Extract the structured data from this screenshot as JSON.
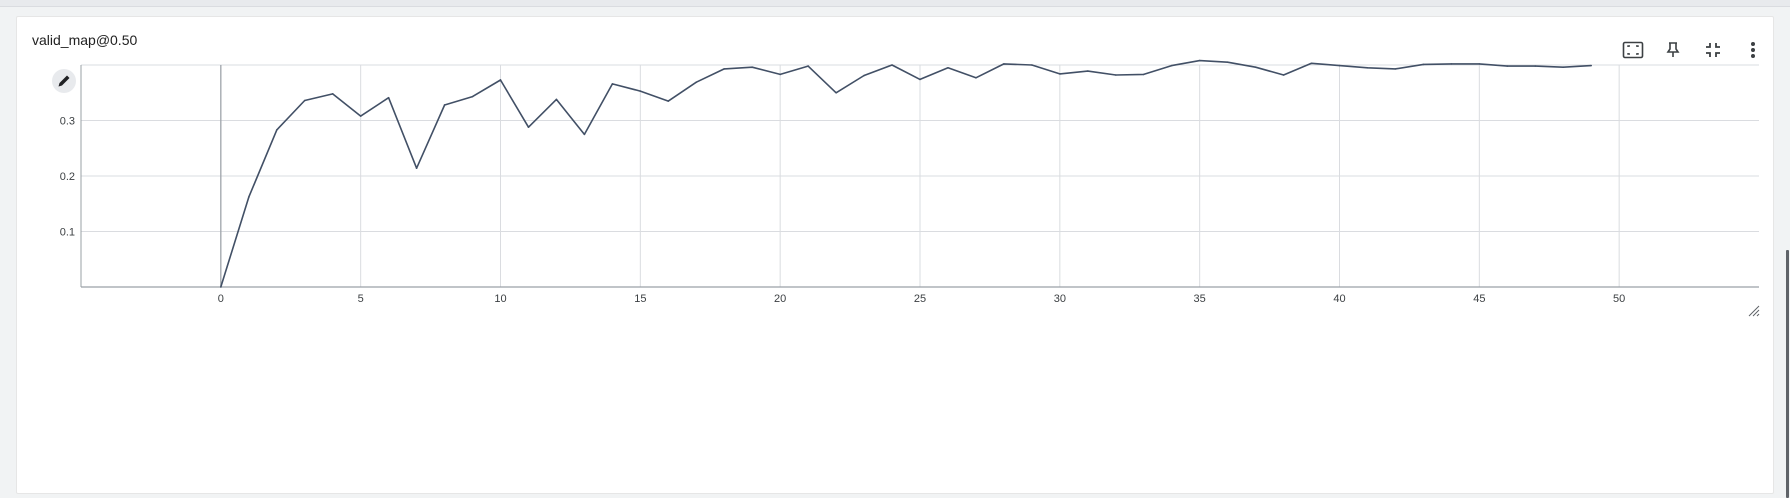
{
  "card": {
    "title": "valid_map@0.50"
  },
  "toolbar": {
    "buttons": [
      {
        "name": "fit-domain-button",
        "icon": "fit-domain-icon"
      },
      {
        "name": "pin-button",
        "icon": "pin-icon"
      },
      {
        "name": "collapse-button",
        "icon": "fullscreen-exit-icon"
      },
      {
        "name": "more-button",
        "icon": "more-vert-icon"
      }
    ]
  },
  "edit_button": {
    "icon": "pencil-icon"
  },
  "chart_data": {
    "type": "line",
    "title": "valid_map@0.50",
    "xlabel": "",
    "ylabel": "",
    "xlim": [
      -5,
      55
    ],
    "ylim": [
      0,
      0.4
    ],
    "x_ticks": [
      0,
      5,
      10,
      15,
      20,
      25,
      30,
      35,
      40,
      45,
      50
    ],
    "y_ticks": [
      0.1,
      0.2,
      0.3
    ],
    "y_tick_labels": [
      "0.1",
      "0.2",
      "0.3"
    ],
    "grid": true,
    "series": [
      {
        "color": "#425066",
        "x": [
          0,
          1,
          2,
          3,
          4,
          5,
          6,
          7,
          8,
          9,
          10,
          11,
          12,
          13,
          14,
          15,
          16,
          17,
          18,
          19,
          20,
          21,
          22,
          23,
          24,
          25,
          26,
          27,
          28,
          29,
          30,
          31,
          32,
          33,
          34,
          35,
          36,
          37,
          38,
          39,
          40,
          41,
          42,
          43,
          44,
          45,
          46,
          47,
          48,
          49
        ],
        "values": [
          0.0,
          0.162,
          0.283,
          0.336,
          0.348,
          0.308,
          0.341,
          0.214,
          0.328,
          0.343,
          0.373,
          0.288,
          0.338,
          0.275,
          0.366,
          0.353,
          0.335,
          0.369,
          0.393,
          0.396,
          0.383,
          0.398,
          0.35,
          0.381,
          0.4,
          0.374,
          0.395,
          0.377,
          0.402,
          0.4,
          0.384,
          0.389,
          0.382,
          0.383,
          0.399,
          0.408,
          0.405,
          0.396,
          0.382,
          0.403,
          0.399,
          0.395,
          0.393,
          0.401,
          0.402,
          0.402,
          0.398,
          0.398,
          0.396,
          0.399
        ]
      }
    ]
  }
}
